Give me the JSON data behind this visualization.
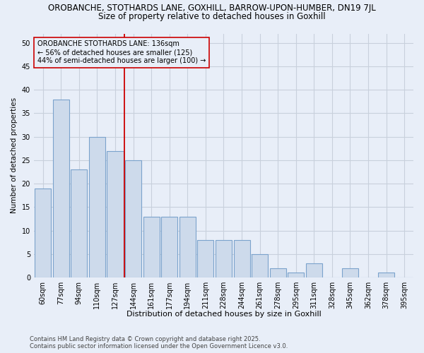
{
  "title_line1": "OROBANCHE, STOTHARDS LANE, GOXHILL, BARROW-UPON-HUMBER, DN19 7JL",
  "title_line2": "Size of property relative to detached houses in Goxhill",
  "xlabel": "Distribution of detached houses by size in Goxhill",
  "ylabel": "Number of detached properties",
  "bar_labels": [
    "60sqm",
    "77sqm",
    "94sqm",
    "110sqm",
    "127sqm",
    "144sqm",
    "161sqm",
    "177sqm",
    "194sqm",
    "211sqm",
    "228sqm",
    "244sqm",
    "261sqm",
    "278sqm",
    "295sqm",
    "311sqm",
    "328sqm",
    "345sqm",
    "362sqm",
    "378sqm",
    "395sqm"
  ],
  "bar_values": [
    19,
    38,
    23,
    30,
    27,
    25,
    13,
    13,
    13,
    8,
    8,
    8,
    5,
    2,
    1,
    3,
    0,
    2,
    0,
    1,
    0
  ],
  "bar_color": "#cddaeb",
  "bar_edgecolor": "#7ba3cc",
  "bar_linewidth": 0.8,
  "vline_x": 5.0,
  "vline_color": "#cc0000",
  "vline_linewidth": 1.3,
  "annotation_text": "OROBANCHE STOTHARDS LANE: 136sqm\n← 56% of detached houses are smaller (125)\n44% of semi-detached houses are larger (100) →",
  "annotation_box_edgecolor": "#cc0000",
  "annotation_fontsize": 7.0,
  "ylim": [
    0,
    52
  ],
  "yticks": [
    0,
    5,
    10,
    15,
    20,
    25,
    30,
    35,
    40,
    45,
    50
  ],
  "grid_color": "#c8d0dc",
  "background_color": "#e8eef8",
  "footer_text": "Contains HM Land Registry data © Crown copyright and database right 2025.\nContains public sector information licensed under the Open Government Licence v3.0.",
  "title_fontsize": 8.5,
  "subtitle_fontsize": 8.5,
  "xlabel_fontsize": 8.0,
  "ylabel_fontsize": 7.5,
  "tick_fontsize": 7.0,
  "footer_fontsize": 6.0
}
